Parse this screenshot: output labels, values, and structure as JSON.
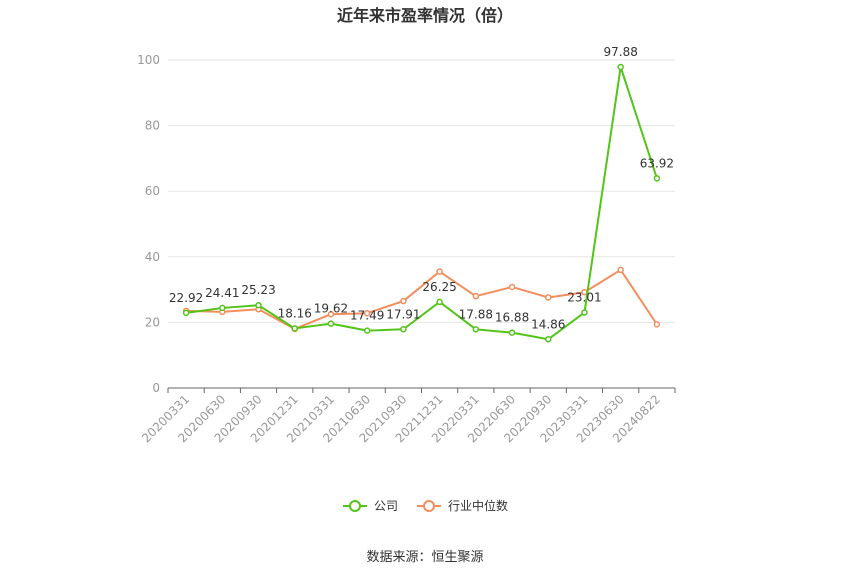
{
  "chart_data": {
    "type": "line",
    "title": "近年来市盈率情况（倍）",
    "categories": [
      "20200331",
      "20200630",
      "20200930",
      "20201231",
      "20210331",
      "20210630",
      "20210930",
      "20211231",
      "20220331",
      "20220630",
      "20220930",
      "20230331",
      "20230630",
      "20240822"
    ],
    "series": [
      {
        "name": "公司",
        "color": "#52c41a",
        "values": [
          22.92,
          24.41,
          25.23,
          18.16,
          19.62,
          17.49,
          17.91,
          26.25,
          17.88,
          16.88,
          14.86,
          23.01,
          97.88,
          63.92
        ],
        "data_labels": [
          "22.92",
          "24.41",
          "25.23",
          "18.16",
          "19.62",
          "17.49",
          "17.91",
          "26.25",
          "17.88",
          "16.88",
          "14.86",
          "23.01",
          "97.88",
          "63.92"
        ]
      },
      {
        "name": "行业中位数",
        "color": "#f28e5c",
        "values": [
          23.5,
          23.2,
          24.0,
          18.0,
          22.5,
          22.8,
          26.5,
          35.5,
          28.0,
          30.8,
          27.6,
          29.2,
          36.0,
          19.4
        ]
      }
    ],
    "ylim": [
      0,
      100
    ],
    "yticks": [
      0,
      20,
      40,
      60,
      80,
      100
    ],
    "grid": true,
    "legend": "bottom-center"
  },
  "source": "数据来源：恒生聚源"
}
